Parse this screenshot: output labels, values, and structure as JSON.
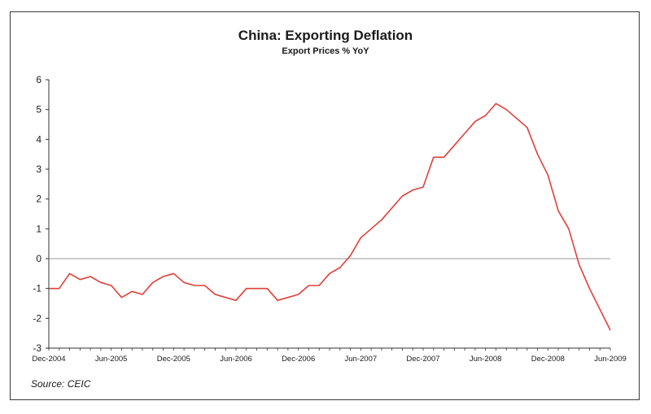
{
  "chart_data": {
    "type": "line",
    "title": "China: Exporting Deflation",
    "subtitle": "Export Prices % YoY",
    "source": "Source: CEIC",
    "xlabel": "",
    "ylabel": "",
    "ylim": [
      -3,
      6
    ],
    "yticks": [
      -3,
      -2,
      -1,
      0,
      1,
      2,
      3,
      4,
      5,
      6
    ],
    "x_tick_labels": [
      "Dec-2004",
      "Jun-2005",
      "Dec-2005",
      "Jun-2006",
      "Dec-2006",
      "Jun-2007",
      "Dec-2007",
      "Jun-2008",
      "Dec-2008",
      "Jun-2009"
    ],
    "reference_line": 0,
    "line_color": "#e0403a",
    "series": [
      {
        "values": [
          -1.0,
          -1.0,
          -0.5,
          -0.7,
          -0.6,
          -0.8,
          -0.9,
          -1.3,
          -1.1,
          -1.2,
          -0.8,
          -0.6,
          -0.5,
          -0.8,
          -0.9,
          -0.9,
          -1.2,
          -1.3,
          -1.4,
          -1.0,
          -1.0,
          -1.0,
          -1.4,
          -1.3,
          -1.2,
          -0.9,
          -0.9,
          -0.5,
          -0.3,
          0.1,
          0.7,
          1.0,
          1.3,
          1.7,
          2.1,
          2.3,
          2.4,
          3.4,
          3.4,
          3.8,
          4.2,
          4.6,
          4.8,
          5.2,
          5.0,
          4.7,
          4.4,
          3.5,
          2.8,
          1.6,
          1.0,
          -0.2,
          -1.0,
          -1.7,
          -2.4
        ]
      }
    ]
  }
}
